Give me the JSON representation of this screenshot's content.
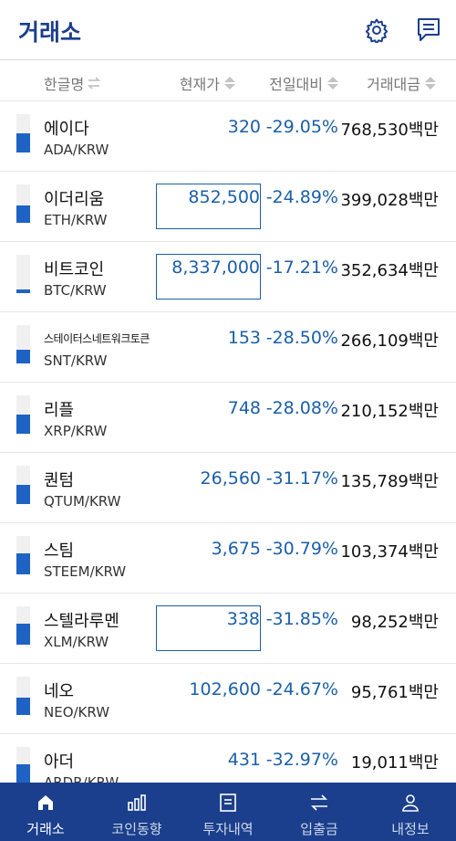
{
  "header": {
    "title": "거래소",
    "settings_icon": "gear-icon",
    "chat_icon": "chat-icon"
  },
  "columns": {
    "name": "한글명",
    "price": "현재가",
    "change": "전일대비",
    "volume": "거래대금"
  },
  "colors": {
    "brand": "#1b3f8c",
    "price_blue": "#1b5fa8",
    "bar_fill": "#1e63c4"
  },
  "rows": [
    {
      "name": "에이다",
      "pair": "ADA/KRW",
      "price": "320",
      "change": "-29.05%",
      "volume": "768,530백만",
      "boxed": false,
      "small": false,
      "bar_level": 0.5
    },
    {
      "name": "이더리움",
      "pair": "ETH/KRW",
      "price": "852,500",
      "change": "-24.89%",
      "volume": "399,028백만",
      "boxed": true,
      "small": false,
      "bar_level": 0.45
    },
    {
      "name": "비트코인",
      "pair": "BTC/KRW",
      "price": "8,337,000",
      "change": "-17.21%",
      "volume": "352,634백만",
      "boxed": true,
      "small": false,
      "bar_level": 0.1
    },
    {
      "name": "스테이터스네트워크토큰",
      "pair": "SNT/KRW",
      "price": "153",
      "change": "-28.50%",
      "volume": "266,109백만",
      "boxed": false,
      "small": true,
      "bar_level": 0.35
    },
    {
      "name": "리플",
      "pair": "XRP/KRW",
      "price": "748",
      "change": "-28.08%",
      "volume": "210,152백만",
      "boxed": false,
      "small": false,
      "bar_level": 0.5
    },
    {
      "name": "퀀텀",
      "pair": "QTUM/KRW",
      "price": "26,560",
      "change": "-31.17%",
      "volume": "135,789백만",
      "boxed": false,
      "small": false,
      "bar_level": 0.5
    },
    {
      "name": "스팀",
      "pair": "STEEM/KRW",
      "price": "3,675",
      "change": "-30.79%",
      "volume": "103,374백만",
      "boxed": false,
      "small": false,
      "bar_level": 0.55
    },
    {
      "name": "스텔라루멘",
      "pair": "XLM/KRW",
      "price": "338",
      "change": "-31.85%",
      "volume": "98,252백만",
      "boxed": true,
      "small": false,
      "bar_level": 0.55
    },
    {
      "name": "네오",
      "pair": "NEO/KRW",
      "price": "102,600",
      "change": "-24.67%",
      "volume": "95,761백만",
      "boxed": false,
      "small": false,
      "bar_level": 0.45
    },
    {
      "name": "아더",
      "pair": "ARDR/KRW",
      "price": "431",
      "change": "-32.97%",
      "volume": "19,011백만",
      "boxed": false,
      "small": false,
      "bar_level": 0.55
    }
  ],
  "nav": [
    {
      "label": "거래소",
      "icon": "home-icon",
      "active": true
    },
    {
      "label": "코인동향",
      "icon": "chart-icon",
      "active": false
    },
    {
      "label": "투자내역",
      "icon": "document-icon",
      "active": false
    },
    {
      "label": "입출금",
      "icon": "transfer-icon",
      "active": false
    },
    {
      "label": "내정보",
      "icon": "user-icon",
      "active": false
    }
  ]
}
